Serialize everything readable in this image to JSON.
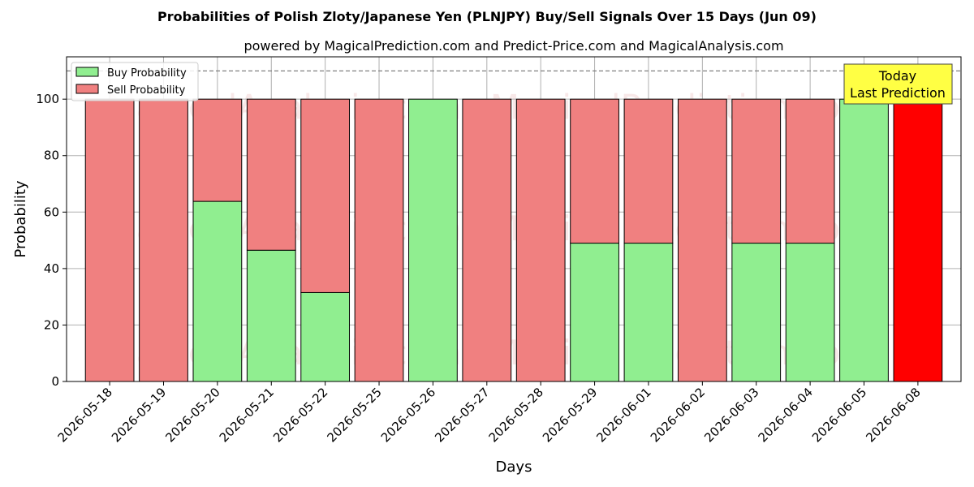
{
  "chart_data": {
    "type": "bar",
    "stacked": true,
    "title": "Probabilities of Polish Zloty/Japanese Yen (PLNJPY) Buy/Sell Signals Over 15 Days (Jun 09)",
    "subtitle": "powered by MagicalPrediction.com and Predict-Price.com and MagicalAnalysis.com",
    "xlabel": "Days",
    "ylabel": "Probability",
    "ylim": [
      0,
      115
    ],
    "yticks": [
      0,
      20,
      40,
      60,
      80,
      100
    ],
    "reference_line": 110,
    "grid": true,
    "legend_position": "top-left",
    "categories": [
      "2026-05-18",
      "2026-05-19",
      "2026-05-20",
      "2026-05-21",
      "2026-05-22",
      "2026-05-25",
      "2026-05-26",
      "2026-05-27",
      "2026-05-28",
      "2026-05-29",
      "2026-06-01",
      "2026-06-02",
      "2026-06-03",
      "2026-06-04",
      "2026-06-05",
      "2026-06-08"
    ],
    "series": [
      {
        "name": "Buy Probability",
        "color": "#90ee90",
        "values": [
          0,
          0,
          63.8,
          46.5,
          31.5,
          0,
          100,
          0,
          0,
          49,
          49,
          0,
          49,
          49,
          100,
          0
        ]
      },
      {
        "name": "Sell Probability",
        "color": "#f08080",
        "values": [
          100,
          100,
          36.2,
          53.5,
          68.5,
          100,
          0,
          100,
          100,
          51,
          51,
          100,
          51,
          51,
          0,
          100
        ]
      }
    ],
    "highlight": {
      "index": 15,
      "color": "#ff0000"
    },
    "annotation": {
      "lines": [
        "Today",
        "Last Prediction"
      ],
      "color": "#ffff44"
    }
  },
  "watermarks": [
    "MagicalAnalysis.com",
    "MagicalPrediction.com"
  ]
}
